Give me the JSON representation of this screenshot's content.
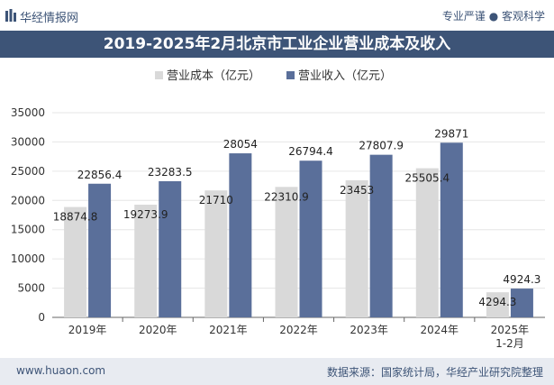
{
  "header": {
    "brand": "华经情报网",
    "tagline": "专业严谨 ● 客观科学"
  },
  "title": "2019-2025年2月北京市工业企业营业成本及收入",
  "footer": {
    "website": "www.huaon.com",
    "source": "数据来源：国家统计局，华经产业研究院整理"
  },
  "colors": {
    "cost": "#d9d9d9",
    "revenue": "#5a6f9a",
    "banner": "#3d5477"
  },
  "chart_data": {
    "type": "bar",
    "title": "2019-2025年2月北京市工业企业营业成本及收入",
    "categories": [
      "2019年",
      "2020年",
      "2021年",
      "2022年",
      "2023年",
      "2024年",
      "2025年\n1-2月"
    ],
    "series": [
      {
        "name": "营业成本（亿元）",
        "values": [
          18874.8,
          19273.9,
          21710,
          22310.9,
          23453,
          25505.4,
          4294.3
        ],
        "labels": [
          "18874.8",
          "19273.9",
          "21710",
          "22310.9",
          "23453",
          "25505.4",
          "4294.3"
        ]
      },
      {
        "name": "营业收入（亿元）",
        "values": [
          22856.4,
          23283.5,
          28054,
          26794.4,
          27807.9,
          29871,
          4924.3
        ],
        "labels": [
          "22856.4",
          "23283.5",
          "28054",
          "26794.4",
          "27807.9",
          "29871",
          "4924.3"
        ]
      }
    ],
    "ylim": [
      0,
      35000
    ],
    "yticks": [
      0,
      5000,
      10000,
      15000,
      20000,
      25000,
      30000,
      35000
    ],
    "xlabel": "",
    "ylabel": "",
    "legend": "top-center"
  }
}
